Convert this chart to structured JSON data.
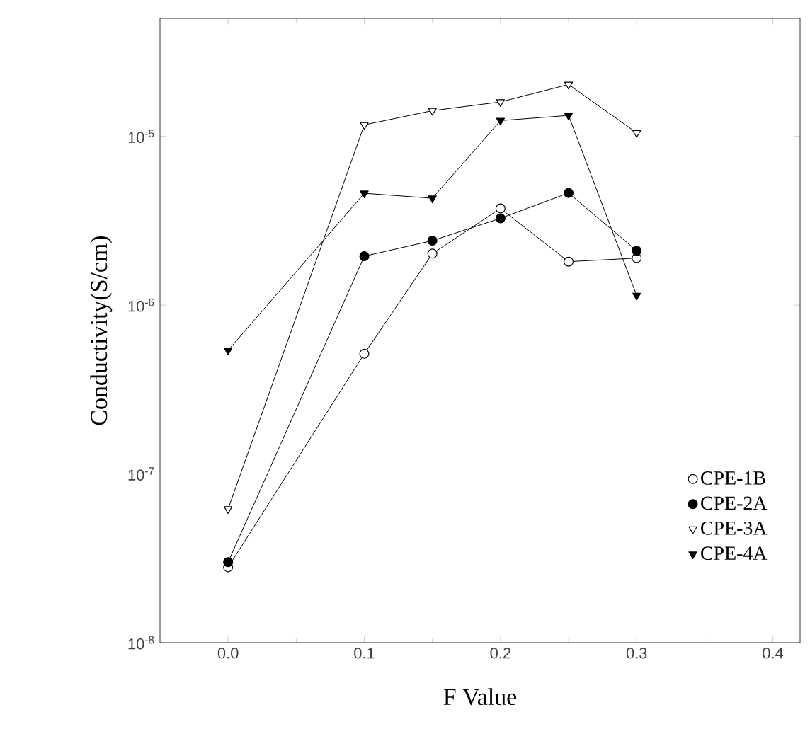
{
  "chart_data": {
    "type": "line",
    "xlabel": "F Value",
    "ylabel": "Conductivity(S/cm)",
    "x": [
      0.0,
      0.1,
      0.15,
      0.2,
      0.25,
      0.3
    ],
    "series": [
      {
        "name": "CPE-1B",
        "color": "#000000",
        "marker": "circle",
        "values": [
          2.8e-08,
          5.15e-07,
          2.02e-06,
          3.74e-06,
          1.81e-06,
          1.9e-06
        ]
      },
      {
        "name": "CPE-2A",
        "color": "#000000",
        "marker": "circle",
        "values": [
          3e-08,
          1.95e-06,
          2.41e-06,
          3.27e-06,
          4.62e-06,
          2.1e-06
        ]
      },
      {
        "name": "CPE-3A",
        "color": "#000000",
        "marker": "triangle",
        "values": [
          6.2e-08,
          1.17e-05,
          1.42e-05,
          1.6e-05,
          2.03e-05,
          1.05e-05
        ]
      },
      {
        "name": "CPE-4A",
        "color": "#000000",
        "marker": "triangle",
        "values": [
          5.4e-07,
          4.6e-06,
          4.3e-06,
          1.24e-05,
          1.33e-05,
          1.14e-06
        ]
      }
    ],
    "log": "y",
    "xlim": [
      -0.05,
      0.42
    ],
    "ylim": [
      1e-08,
      5e-05
    ],
    "xticks": [
      {
        "value": 0.0,
        "label": "0.0"
      },
      {
        "value": 0.1,
        "label": "0.1"
      },
      {
        "value": 0.2,
        "label": "0.2"
      },
      {
        "value": 0.3,
        "label": "0.3"
      },
      {
        "value": 0.4,
        "label": "0.4"
      }
    ],
    "yticks": [
      {
        "value": 1e-08,
        "label": "10$^{-8}$"
      },
      {
        "value": 1e-07,
        "label": "10$^{-7}$"
      },
      {
        "value": 1e-06,
        "label": "10$^{-6}$"
      },
      {
        "value": 1e-05,
        "label": "10$^{-5}$"
      }
    ],
    "grid": false,
    "legend": "bottom right",
    "line_style": "solid"
  }
}
